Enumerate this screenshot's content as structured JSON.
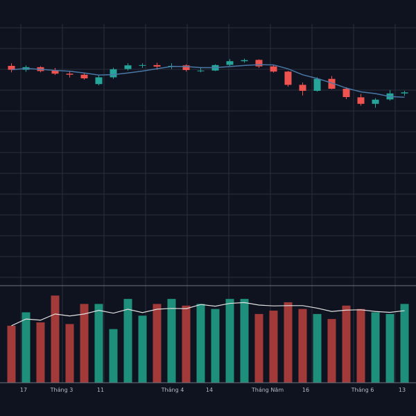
{
  "chart_data": [
    {
      "type": "candlestick",
      "title": "",
      "xlabel": "",
      "ylabel": "",
      "grid": true,
      "x_tick_labels": [
        "17",
        "Tháng 3",
        "11",
        "Tháng 4",
        "14",
        "Tháng Năm",
        "16",
        "Tháng 6",
        "13"
      ],
      "ylim": [
        0,
        100
      ],
      "series": [
        {
          "type": "ohlc",
          "up_color": "#26a69a",
          "down_color": "#ef5350",
          "points": [
            {
              "o": 84.0,
              "h": 85.0,
              "l": 81.5,
              "c": 82.5
            },
            {
              "o": 82.5,
              "h": 84.2,
              "l": 81.7,
              "c": 83.5
            },
            {
              "o": 83.5,
              "h": 83.9,
              "l": 81.5,
              "c": 82.0
            },
            {
              "o": 82.2,
              "h": 83.2,
              "l": 80.5,
              "c": 81.0
            },
            {
              "o": 81.0,
              "h": 82.0,
              "l": 79.5,
              "c": 80.6
            },
            {
              "o": 80.6,
              "h": 81.4,
              "l": 78.7,
              "c": 79.2
            },
            {
              "o": 77.0,
              "h": 80.4,
              "l": 76.5,
              "c": 79.6
            },
            {
              "o": 79.6,
              "h": 83.3,
              "l": 79.0,
              "c": 82.7
            },
            {
              "o": 82.8,
              "h": 85.0,
              "l": 82.2,
              "c": 84.2
            },
            {
              "o": 84.2,
              "h": 85.0,
              "l": 83.2,
              "c": 84.3
            },
            {
              "o": 84.3,
              "h": 85.2,
              "l": 82.5,
              "c": 83.7
            },
            {
              "o": 83.7,
              "h": 85.0,
              "l": 82.8,
              "c": 84.0
            },
            {
              "o": 84.2,
              "h": 84.6,
              "l": 81.8,
              "c": 82.4
            },
            {
              "o": 82.2,
              "h": 83.5,
              "l": 81.5,
              "c": 82.2
            },
            {
              "o": 82.2,
              "h": 84.6,
              "l": 82.0,
              "c": 84.3
            },
            {
              "o": 84.4,
              "h": 86.6,
              "l": 84.0,
              "c": 85.8
            },
            {
              "o": 85.8,
              "h": 86.8,
              "l": 85.2,
              "c": 86.2
            },
            {
              "o": 86.3,
              "h": 86.5,
              "l": 83.2,
              "c": 83.8
            },
            {
              "o": 83.8,
              "h": 84.4,
              "l": 81.4,
              "c": 81.8
            },
            {
              "o": 81.8,
              "h": 82.1,
              "l": 76.0,
              "c": 76.7
            },
            {
              "o": 76.7,
              "h": 77.6,
              "l": 72.6,
              "c": 74.4
            },
            {
              "o": 74.4,
              "h": 79.6,
              "l": 74.1,
              "c": 79.0
            },
            {
              "o": 79.0,
              "h": 80.1,
              "l": 75.0,
              "c": 75.2
            },
            {
              "o": 75.2,
              "h": 75.8,
              "l": 71.2,
              "c": 72.0
            },
            {
              "o": 71.9,
              "h": 73.2,
              "l": 68.7,
              "c": 69.4
            },
            {
              "o": 69.4,
              "h": 71.6,
              "l": 67.9,
              "c": 71.0
            },
            {
              "o": 71.1,
              "h": 74.7,
              "l": 70.6,
              "c": 73.4
            },
            {
              "o": 73.4,
              "h": 74.4,
              "l": 72.5,
              "c": 73.8
            }
          ]
        }
      ]
    },
    {
      "type": "bar",
      "title": "",
      "series": [
        {
          "name": "",
          "values": [
            34,
            42,
            36,
            52,
            35,
            47,
            47,
            32,
            50,
            40,
            47,
            50,
            46,
            47,
            44,
            50,
            50,
            41,
            43,
            48,
            44,
            41,
            38,
            46,
            44,
            42,
            41,
            47
          ]
        }
      ]
    }
  ]
}
